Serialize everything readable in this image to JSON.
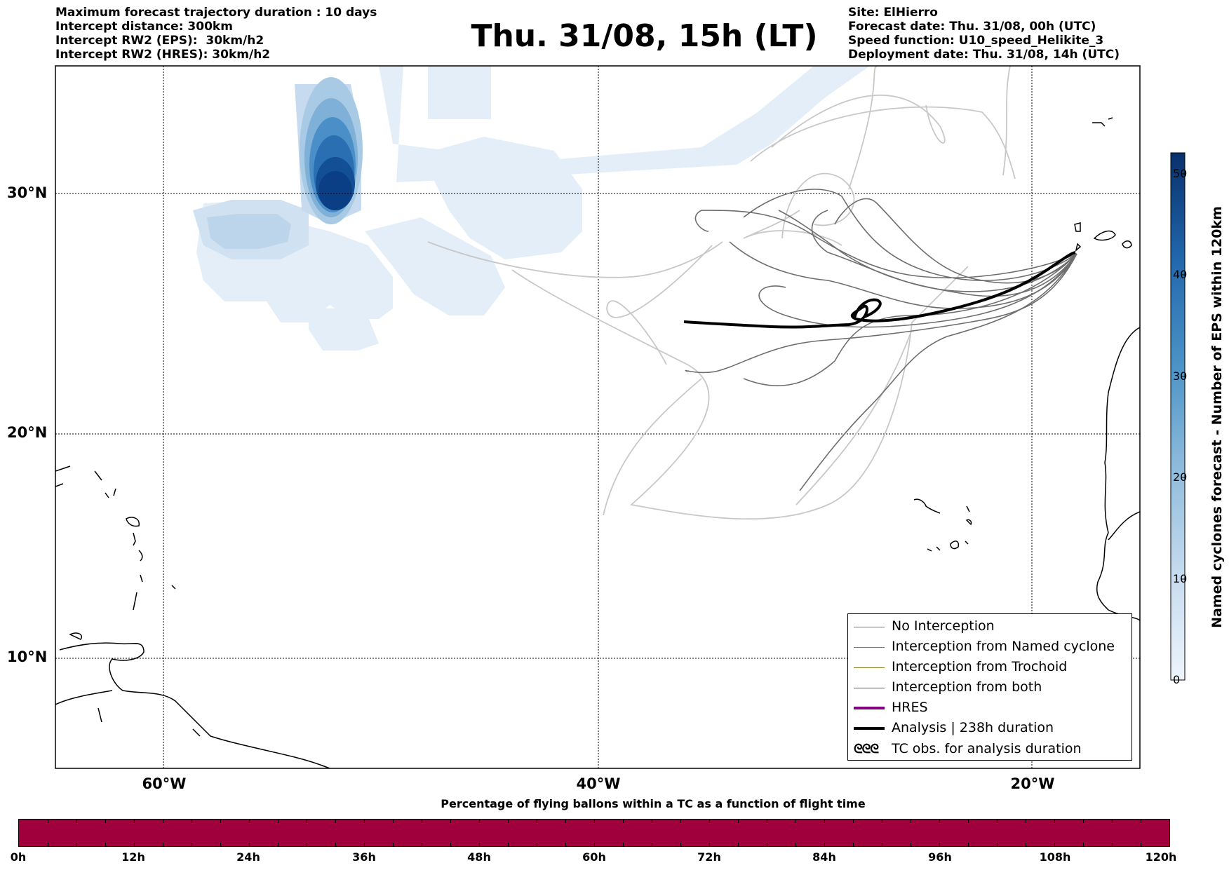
{
  "header_left": [
    "Maximum forecast trajectory duration : 10 days",
    "Intercept distance: 300km",
    "Intercept RW2 (EPS):  30km/h2",
    "Intercept RW2 (HRES): 30km/h2"
  ],
  "title": "Thu. 31/08, 15h (LT)",
  "header_right": [
    "Site: ElHierro",
    "Forecast date: Thu. 31/08, 00h (UTC)",
    "Speed function: U10_speed_Helikite_3",
    "Deployment date: Thu. 31/08, 14h (UTC)"
  ],
  "map": {
    "lat_labels": [
      "30°N",
      "20°N",
      "10°N"
    ],
    "lon_labels": [
      "60°W",
      "40°W",
      "20°W"
    ]
  },
  "legend": {
    "items": [
      {
        "label": "No Interception",
        "color": "#777777"
      },
      {
        "label": "Interception from Named cyclone",
        "color": "#e8561e"
      },
      {
        "label": "Interception from Trochoid",
        "color": "#7f7f1e"
      },
      {
        "label": "Interception from both",
        "color": "#2a8a2a"
      },
      {
        "label": "HRES",
        "color": "#800080"
      },
      {
        "label": "Analysis | 238h duration",
        "color": "#000000"
      },
      {
        "label": "TC obs. for analysis duration",
        "icon": "tc-symbol-icon"
      }
    ]
  },
  "colorbar": {
    "label": "Named cyclones forecast - Number of EPS within 120km",
    "ticks": [
      "50",
      "40",
      "30",
      "20",
      "10",
      "0"
    ]
  },
  "bottom_bar": {
    "title": "Percentage of flying ballons within a TC as a function of flight time",
    "ticks": [
      "0h",
      "12h",
      "24h",
      "36h",
      "48h",
      "60h",
      "72h",
      "84h",
      "96h",
      "108h",
      "120h"
    ],
    "color": "#a0003c"
  }
}
